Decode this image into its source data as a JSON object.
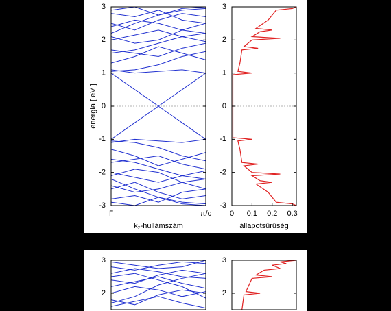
{
  "chart_data": [
    {
      "type": "band-structure",
      "y_label": "energia [ eV ]",
      "ylim": [
        -3,
        3
      ],
      "yticks": [
        -3,
        -2,
        -1,
        0,
        1,
        2,
        3
      ],
      "zero_line": true,
      "k": [
        0,
        0.25,
        0.5,
        0.75,
        1
      ],
      "k_ticks": [
        {
          "value": 0,
          "label": "Γ"
        },
        {
          "value": 1,
          "label": "π/c"
        }
      ],
      "x_label": {
        "base": "k",
        "sub": "z",
        "rest": "-hullámszám"
      },
      "band_color": "#2030d0",
      "bands": [
        [
          1.0,
          0.5,
          0,
          -0.5,
          -1.0
        ],
        [
          -1.0,
          -0.5,
          0,
          0.5,
          1.0
        ],
        [
          1.05,
          1.1,
          1.25,
          1.5,
          1.65
        ],
        [
          1.1,
          1.0,
          1.05,
          1.1,
          1.0
        ],
        [
          1.6,
          1.7,
          1.9,
          2.1,
          2.2
        ],
        [
          1.7,
          1.6,
          1.5,
          1.75,
          1.9
        ],
        [
          2.0,
          2.15,
          2.3,
          2.1,
          1.95
        ],
        [
          2.1,
          1.9,
          2.0,
          2.3,
          2.5
        ],
        [
          2.4,
          2.6,
          2.5,
          2.3,
          2.2
        ],
        [
          2.5,
          2.3,
          2.6,
          2.8,
          2.7
        ],
        [
          2.8,
          2.7,
          2.9,
          2.6,
          2.5
        ],
        [
          2.9,
          3.0,
          2.75,
          2.9,
          2.95
        ],
        [
          1.3,
          1.5,
          1.8,
          1.6,
          1.4
        ],
        [
          2.2,
          2.5,
          2.75,
          2.95,
          3.0
        ],
        [
          -1.05,
          -1.1,
          -1.25,
          -1.5,
          -1.65
        ],
        [
          -1.1,
          -1.0,
          -1.05,
          -1.1,
          -1.0
        ],
        [
          -1.6,
          -1.7,
          -1.9,
          -2.1,
          -2.2
        ],
        [
          -1.7,
          -1.6,
          -1.5,
          -1.75,
          -1.9
        ],
        [
          -2.0,
          -2.15,
          -2.3,
          -2.1,
          -1.95
        ],
        [
          -2.1,
          -1.9,
          -2.0,
          -2.3,
          -2.5
        ],
        [
          -2.4,
          -2.6,
          -2.5,
          -2.3,
          -2.2
        ],
        [
          -2.5,
          -2.3,
          -2.6,
          -2.8,
          -2.7
        ],
        [
          -2.8,
          -2.7,
          -2.9,
          -2.6,
          -2.5
        ],
        [
          -2.9,
          -3.0,
          -2.75,
          -2.9,
          -2.95
        ],
        [
          -1.3,
          -1.5,
          -1.8,
          -1.6,
          -1.4
        ],
        [
          -2.2,
          -2.5,
          -2.75,
          -2.95,
          -3.0
        ]
      ],
      "dos": {
        "x_label": "állapotsűrűség",
        "xlim": [
          0,
          0.32
        ],
        "xticks": [
          0,
          0.1,
          0.2,
          0.3
        ],
        "color": "#e02020",
        "energy": [
          -3,
          -2.95,
          -2.9,
          -2.6,
          -2.35,
          -2.3,
          -2.25,
          -2.1,
          -2.05,
          -2.0,
          -1.8,
          -1.75,
          -1.7,
          -1.3,
          -1.05,
          -1.0,
          -0.95,
          0,
          0.95,
          1.0,
          1.05,
          1.3,
          1.7,
          1.75,
          1.8,
          2.0,
          2.05,
          2.1,
          2.25,
          2.3,
          2.35,
          2.6,
          2.9,
          2.95,
          3.0
        ],
        "values": [
          0.32,
          0.3,
          0.22,
          0.18,
          0.12,
          0.2,
          0.14,
          0.1,
          0.24,
          0.1,
          0.06,
          0.13,
          0.05,
          0.04,
          0.03,
          0.1,
          0.005,
          0.005,
          0.005,
          0.1,
          0.03,
          0.04,
          0.05,
          0.13,
          0.06,
          0.1,
          0.24,
          0.1,
          0.14,
          0.2,
          0.12,
          0.18,
          0.22,
          0.3,
          0.32
        ]
      }
    },
    {
      "type": "band-structure",
      "ylim": [
        1.5,
        3
      ],
      "yticks": [
        2,
        3
      ],
      "k": [
        0,
        0.25,
        0.5,
        0.75,
        1
      ],
      "band_color": "#2030d0",
      "bands": [
        [
          1.6,
          1.75,
          1.9,
          1.7,
          1.55
        ],
        [
          1.8,
          1.65,
          1.95,
          2.1,
          2.0
        ],
        [
          2.0,
          2.2,
          2.1,
          1.9,
          2.05
        ],
        [
          2.2,
          2.35,
          2.5,
          2.3,
          2.15
        ],
        [
          2.4,
          2.3,
          2.55,
          2.7,
          2.6
        ],
        [
          2.6,
          2.75,
          2.65,
          2.5,
          2.45
        ],
        [
          2.8,
          2.7,
          2.85,
          2.95,
          2.9
        ],
        [
          2.95,
          2.85,
          2.75,
          2.8,
          3.0
        ],
        [
          1.7,
          1.9,
          2.25,
          2.45,
          2.6
        ],
        [
          2.5,
          2.6,
          2.4,
          2.2,
          1.85
        ]
      ],
      "dos": {
        "xlim": [
          0,
          0.32
        ],
        "color": "#e02020",
        "energy": [
          1.5,
          1.95,
          2.0,
          2.05,
          2.45,
          2.5,
          2.55,
          2.7,
          2.75,
          2.85,
          2.9,
          2.95,
          3.0
        ],
        "values": [
          0.05,
          0.06,
          0.14,
          0.07,
          0.1,
          0.2,
          0.12,
          0.16,
          0.24,
          0.2,
          0.27,
          0.24,
          0.32
        ]
      }
    }
  ]
}
